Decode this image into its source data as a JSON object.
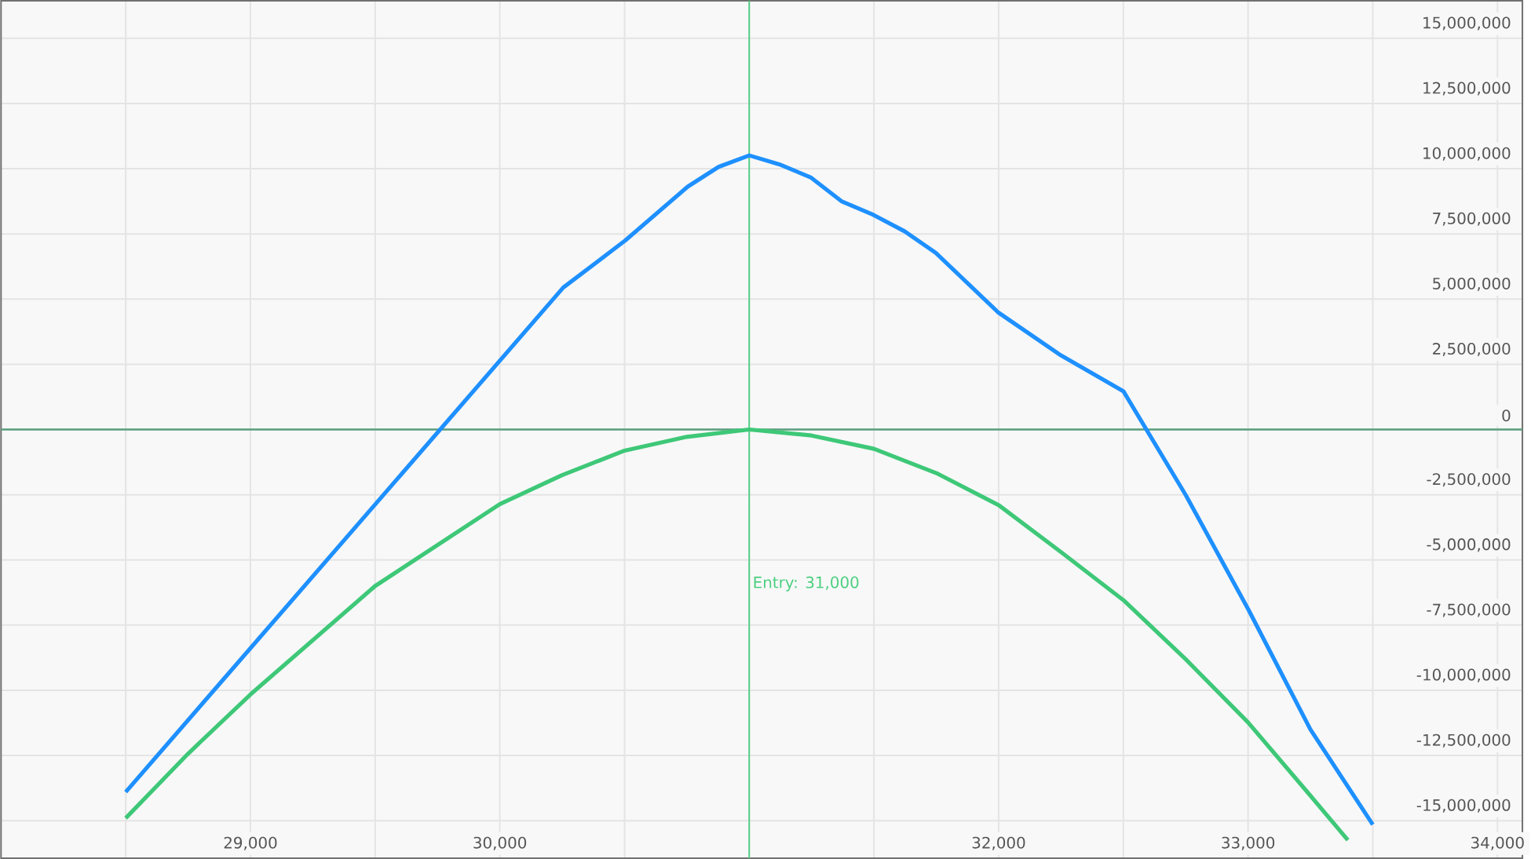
{
  "chart_data": {
    "type": "line",
    "xlim": [
      28000,
      34100
    ],
    "ylim": [
      -16440000,
      16440000
    ],
    "xticks": [
      {
        "value": 28500,
        "label": null
      },
      {
        "value": 29000,
        "label": "29,000"
      },
      {
        "value": 29500,
        "label": null
      },
      {
        "value": 30000,
        "label": "30,000"
      },
      {
        "value": 30500,
        "label": null
      },
      {
        "value": 31000,
        "label": null
      },
      {
        "value": 31500,
        "label": null
      },
      {
        "value": 32000,
        "label": "32,000"
      },
      {
        "value": 32500,
        "label": null
      },
      {
        "value": 33000,
        "label": "33,000"
      },
      {
        "value": 33500,
        "label": null
      },
      {
        "value": 34000,
        "label": "34,000"
      }
    ],
    "yticks": [
      {
        "value": -15000000,
        "label": "-15,000,000"
      },
      {
        "value": -12500000,
        "label": "-12,500,000"
      },
      {
        "value": -10000000,
        "label": "-10,000,000"
      },
      {
        "value": -7500000,
        "label": "-7,500,000"
      },
      {
        "value": -5000000,
        "label": "-5,000,000"
      },
      {
        "value": -2500000,
        "label": "-2,500,000"
      },
      0,
      {
        "value": 2500000,
        "label": "2,500,000"
      },
      {
        "value": 5000000,
        "label": "5,000,000"
      },
      {
        "value": 7500000,
        "label": "7,500,000"
      },
      {
        "value": 10000000,
        "label": "10,000,000"
      },
      {
        "value": 12500000,
        "label": "12,500,000"
      },
      {
        "value": 15000000,
        "label": "15,000,000"
      }
    ],
    "grid": true,
    "ref_lines": [
      {
        "axis": "x",
        "value": 31000,
        "label": "Entry: 31,000",
        "color": "#4ccf80"
      },
      {
        "axis": "y",
        "value": 0,
        "color": "#5a9e7e"
      }
    ],
    "series": [
      {
        "color": "#1e90ff",
        "x": [
          28500,
          30254,
          30503,
          30753,
          30877,
          31000,
          31120,
          31246,
          31372,
          31498,
          31623,
          31748,
          31998,
          32250,
          32500,
          32750,
          33000,
          33250,
          33500
        ],
        "values": [
          -13900000,
          5440000,
          7250000,
          9310000,
          10070000,
          10510000,
          10170000,
          9670000,
          8740000,
          8230000,
          7600000,
          6770000,
          4490000,
          2840000,
          1470000,
          -2510000,
          -6880000,
          -11500000,
          -15150000
        ]
      },
      {
        "color": "#3ec878",
        "x": [
          28500,
          28750,
          29000,
          29500,
          30000,
          30250,
          30500,
          30750,
          31000,
          31250,
          31500,
          31750,
          32000,
          32250,
          32500,
          32750,
          33000,
          33250,
          33400
        ],
        "values": [
          -14900000,
          -12430000,
          -10160000,
          -6000000,
          -2860000,
          -1750000,
          -810000,
          -280000,
          0,
          -230000,
          -740000,
          -1670000,
          -2900000,
          -4700000,
          -6540000,
          -8810000,
          -11230000,
          -14040000,
          -15740000
        ]
      }
    ]
  }
}
